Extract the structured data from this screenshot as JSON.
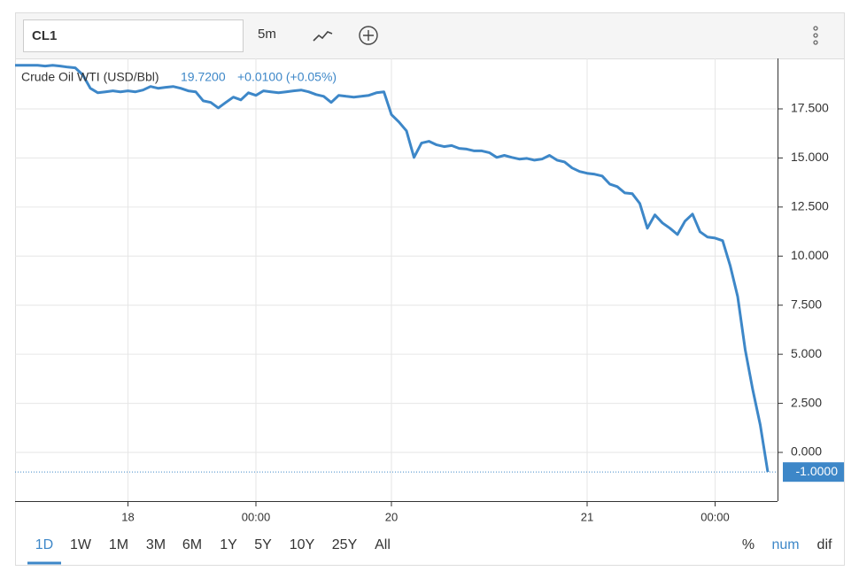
{
  "header": {
    "symbol": "CL1",
    "interval": "5m"
  },
  "chart_data": {
    "type": "line",
    "series": [
      {
        "name": "Crude Oil WTI (USD/Bbl)",
        "color": "#3d87c8",
        "values": [
          19.72,
          19.72,
          19.72,
          19.72,
          19.68,
          19.72,
          19.68,
          19.63,
          19.59,
          19.23,
          18.55,
          18.32,
          18.37,
          18.42,
          18.37,
          18.42,
          18.37,
          18.46,
          18.64,
          18.55,
          18.6,
          18.64,
          18.55,
          18.42,
          18.37,
          17.91,
          17.83,
          17.55,
          17.83,
          18.1,
          17.96,
          18.32,
          18.19,
          18.42,
          18.37,
          18.32,
          18.37,
          18.42,
          18.46,
          18.37,
          18.23,
          18.14,
          17.83,
          18.19,
          18.14,
          18.1,
          18.14,
          18.19,
          18.32,
          18.37,
          17.21,
          16.83,
          16.38,
          15.03,
          15.76,
          15.85,
          15.67,
          15.58,
          15.63,
          15.49,
          15.45,
          15.36,
          15.36,
          15.27,
          15.03,
          15.13,
          15.03,
          14.94,
          14.98,
          14.89,
          14.94,
          15.13,
          14.89,
          14.8,
          14.49,
          14.31,
          14.22,
          14.17,
          14.08,
          13.67,
          13.54,
          13.22,
          13.18,
          12.68,
          11.42,
          12.1,
          11.69,
          11.42,
          11.1,
          11.78,
          12.14,
          11.24,
          10.97,
          10.92,
          10.79,
          9.52,
          7.94,
          5.23,
          3.2,
          1.4,
          -1.0
        ],
        "value_labels": {
          "100": "-1.0000"
        }
      }
    ],
    "legend_value": "19.7200",
    "legend_change": "+0.0100 (+0.05%)",
    "xlim": [
      0,
      100
    ],
    "xticks": [
      {
        "value": 15,
        "label": "18"
      },
      {
        "value": 32,
        "label": "00:00"
      },
      {
        "value": 50,
        "label": "20"
      },
      {
        "value": 76,
        "label": "21"
      },
      {
        "value": 93,
        "label": "00:00"
      }
    ],
    "ylim": [
      -2.48,
      20.07
    ],
    "yticks": [
      {
        "value": 0,
        "label": "0.000"
      },
      {
        "value": 2.5,
        "label": "2.500"
      },
      {
        "value": 5,
        "label": "5.000"
      },
      {
        "value": 7.5,
        "label": "7.500"
      },
      {
        "value": 10,
        "label": "10.000"
      },
      {
        "value": 12.5,
        "label": "12.500"
      },
      {
        "value": 15,
        "label": "15.000"
      },
      {
        "value": 17.5,
        "label": "17.500"
      }
    ],
    "grid": true
  },
  "range_buttons": [
    "1D",
    "1W",
    "1M",
    "3M",
    "6M",
    "1Y",
    "5Y",
    "10Y",
    "25Y",
    "All"
  ],
  "scale_modes": [
    "%",
    "num",
    "dif"
  ]
}
